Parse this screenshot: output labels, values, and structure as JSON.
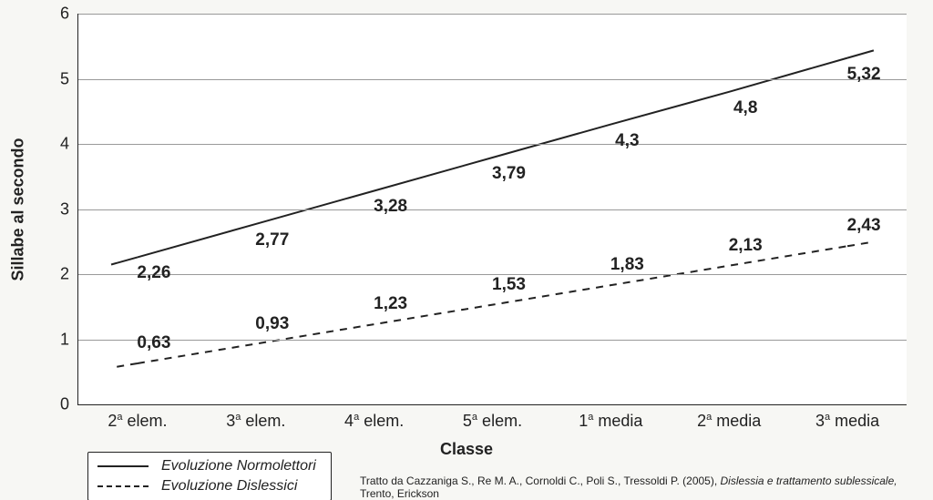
{
  "chart": {
    "type": "line",
    "background_color": "#ffffff",
    "page_background": "#f7f7f4",
    "grid_color": "#999999",
    "axis_color": "#222222",
    "x_axis_title": "Classe",
    "y_axis_title": "Sillabe al secondo",
    "title_fontsize": 18,
    "label_fontsize": 18,
    "data_label_fontsize": 19,
    "ylim": [
      0,
      6
    ],
    "ytick_step": 1,
    "y_ticks": [
      "0",
      "1",
      "2",
      "3",
      "4",
      "5",
      "6"
    ],
    "categories_html": [
      "2<sup>a</sup> elem.",
      "3<sup>a</sup> elem.",
      "4<sup>a</sup> elem.",
      "5<sup>a</sup> elem.",
      "1<sup>a</sup> media",
      "2<sup>a</sup> media",
      "3<sup>a</sup> media"
    ],
    "series": [
      {
        "name": "Evoluzione Normolettori",
        "values": [
          2.26,
          2.77,
          3.28,
          3.79,
          4.3,
          4.8,
          5.32
        ],
        "labels": [
          "2,26",
          "2,77",
          "3,28",
          "3,79",
          "4,3",
          "4,8",
          "5,32"
        ],
        "color": "#222222",
        "line_width": 2,
        "dash": "none",
        "label_offset_y": 18,
        "label_offset_x": 18
      },
      {
        "name": "Evoluzione Dislessici",
        "values": [
          0.63,
          0.93,
          1.23,
          1.53,
          1.83,
          2.13,
          2.43
        ],
        "labels": [
          "0,63",
          "0,93",
          "1,23",
          "1,53",
          "1,83",
          "2,13",
          "2,43"
        ],
        "color": "#222222",
        "line_width": 2,
        "dash": "8,7",
        "label_offset_y": -22,
        "label_offset_x": 18
      }
    ],
    "legend": {
      "items": [
        {
          "label": "Evoluzione Normolettori",
          "dash": "none"
        },
        {
          "label": "Evoluzione Dislessici",
          "dash": "dashed"
        }
      ]
    }
  },
  "citation": {
    "prefix": "Tratto da Cazzaniga S., Re M. A., Cornoldi C., Poli S., Tressoldi P. (2005), ",
    "title_italic": "Dislessia e trattamento sublessicale,",
    "suffix": " Trento, Erickson"
  }
}
